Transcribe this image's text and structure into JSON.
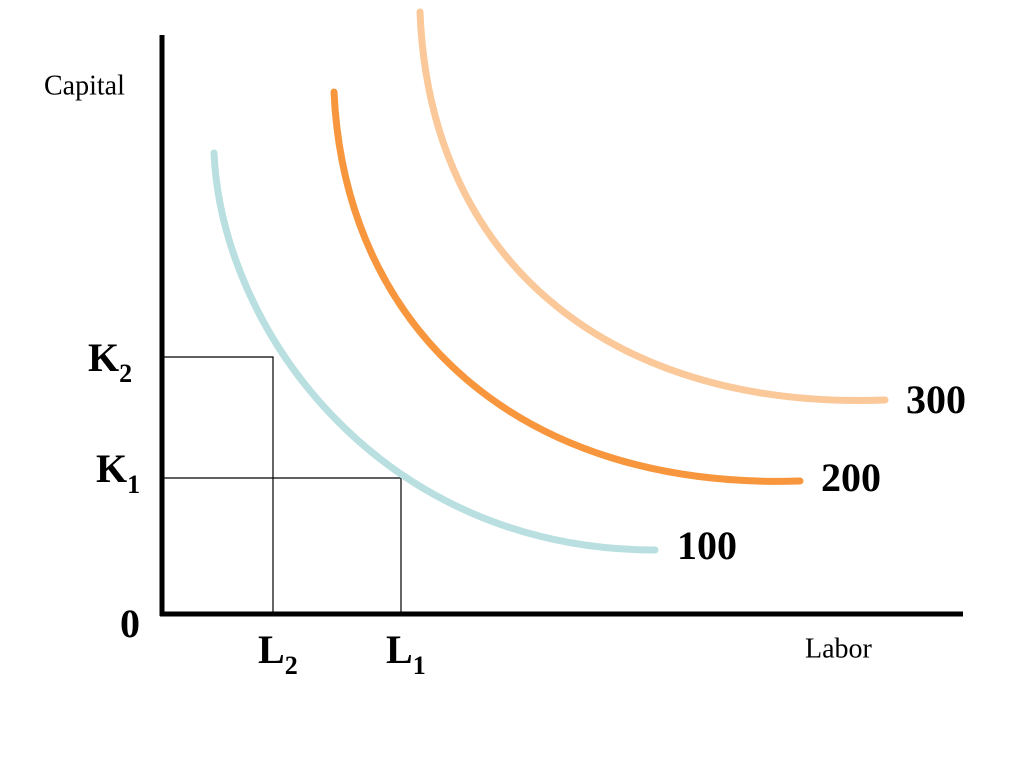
{
  "axes": {
    "y_label": "Capital",
    "x_label": "Labor",
    "origin": "0"
  },
  "y_points": [
    {
      "main": "K",
      "sub": "2"
    },
    {
      "main": "K",
      "sub": "1"
    }
  ],
  "x_points": [
    {
      "main": "L",
      "sub": "2"
    },
    {
      "main": "L",
      "sub": "1"
    }
  ],
  "isoquants": [
    {
      "label": "100",
      "color": "#b9dfe0"
    },
    {
      "label": "200",
      "color": "#f7963c"
    },
    {
      "label": "300",
      "color": "#fbc899"
    }
  ]
}
